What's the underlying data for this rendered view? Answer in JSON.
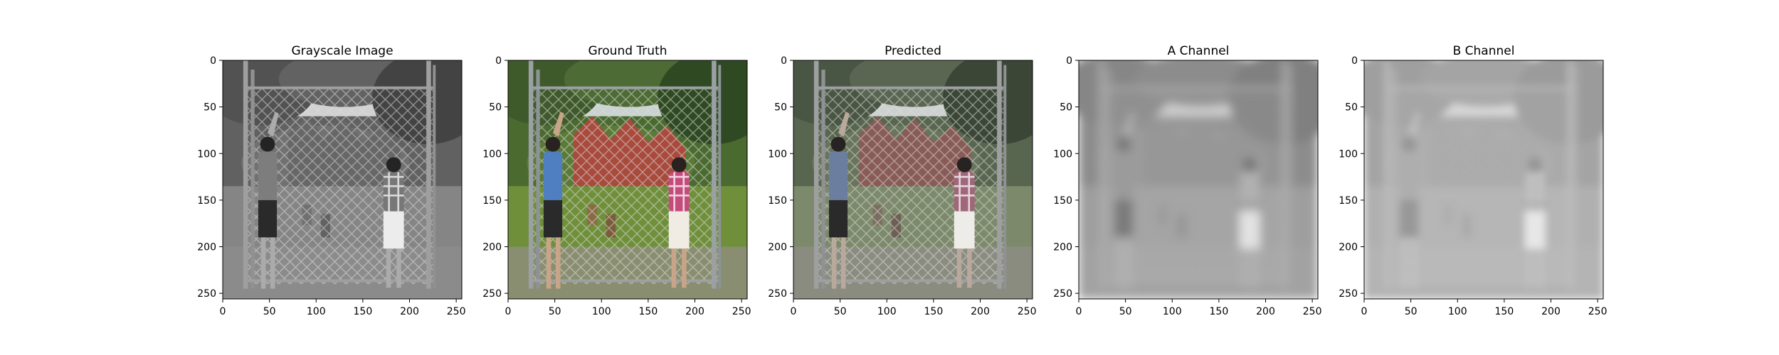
{
  "figure": {
    "panels": [
      {
        "title": "Grayscale Image",
        "kind": "grayscale"
      },
      {
        "title": "Ground Truth",
        "kind": "color"
      },
      {
        "title": "Predicted",
        "kind": "predicted"
      },
      {
        "title": "A Channel",
        "kind": "a_channel"
      },
      {
        "title": "B Channel",
        "kind": "b_channel"
      }
    ],
    "x_ticks": [
      "0",
      "50",
      "100",
      "150",
      "200",
      "250"
    ],
    "y_ticks": [
      "0",
      "50",
      "100",
      "150",
      "200",
      "250"
    ]
  },
  "colors": {
    "grass": "#6f8f3a",
    "foliage": "#3f5a2a",
    "sky": "#c9d3cf",
    "shirt_blue": "#4f7fc0",
    "shirt_plaid": "#c44c7c",
    "shorts_dark": "#2a2a2a",
    "shorts_white": "#f0ece4",
    "fence": "#9aa0a4"
  }
}
